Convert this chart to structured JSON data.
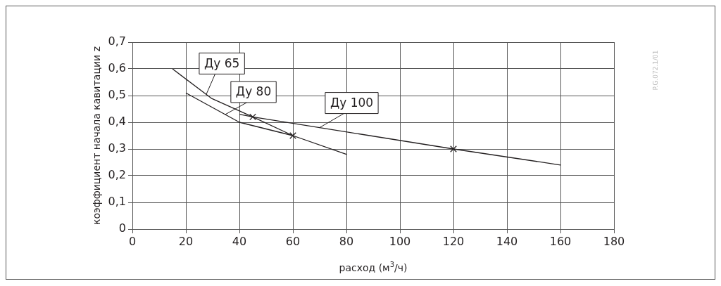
{
  "chart_data": {
    "type": "line",
    "xlabel": "расход (м$^{3}$/ч)",
    "ylabel": "коэффициент начала кавитации z",
    "xlim": [
      0,
      180
    ],
    "xticks": [
      0,
      20,
      40,
      60,
      80,
      100,
      120,
      140,
      160,
      180
    ],
    "ylim": [
      0,
      0.7
    ],
    "yticks": [
      {
        "value": 0,
        "label": "0"
      },
      {
        "value": 0.1,
        "label": "0,1"
      },
      {
        "value": 0.2,
        "label": "0,2"
      },
      {
        "value": 0.3,
        "label": "0,3"
      },
      {
        "value": 0.4,
        "label": "0,4"
      },
      {
        "value": 0.5,
        "label": "0,5"
      },
      {
        "value": 0.6,
        "label": "0,6"
      },
      {
        "value": 0.7,
        "label": "0,7"
      }
    ],
    "grid": true,
    "legend": "top left",
    "marker": "none",
    "line_style": "solid",
    "series": [
      {
        "name": "Ду 65",
        "color": "#231f20",
        "x": [
          15,
          29.5,
          45,
          60
        ],
        "values": [
          0.6,
          0.49,
          0.42,
          0.35
        ]
      },
      {
        "name": "Ду 80",
        "color": "#231f20",
        "x": [
          20,
          40,
          60,
          80
        ],
        "values": [
          0.51,
          0.4,
          0.35,
          0.28
        ]
      },
      {
        "name": "Ду 100",
        "color": "#231f20",
        "x": [
          40,
          45,
          120,
          160
        ],
        "values": [
          0.43,
          0.42,
          0.3,
          0.24
        ]
      },
      {
        "type": "scatter",
        "marker": "cross",
        "color": "#231f20",
        "x": [
          45,
          60,
          120
        ],
        "values": [
          0.42,
          0.35,
          0.3
        ]
      }
    ],
    "annotations": [
      "P.G.072.1/01"
    ]
  }
}
